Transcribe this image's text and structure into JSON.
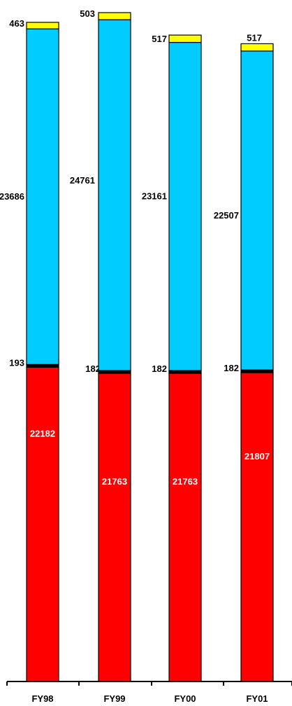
{
  "chart_data": {
    "type": "bar",
    "stacked": true,
    "categories": [
      "FY98",
      "FY99",
      "FY00",
      "FY01"
    ],
    "series": [
      {
        "key": "red",
        "values": [
          22182,
          21763,
          21763,
          21807
        ],
        "color": "#ff0000"
      },
      {
        "key": "black",
        "values": [
          193,
          182,
          182,
          182
        ],
        "color": "#000000"
      },
      {
        "key": "blue",
        "values": [
          23686,
          24761,
          23161,
          22507
        ],
        "color": "#00ccff"
      },
      {
        "key": "yellow",
        "values": [
          463,
          503,
          517,
          517
        ],
        "color": "#ffff00"
      }
    ],
    "title": "",
    "xlabel": "",
    "ylabel": "",
    "grid": false,
    "legend": "none"
  }
}
